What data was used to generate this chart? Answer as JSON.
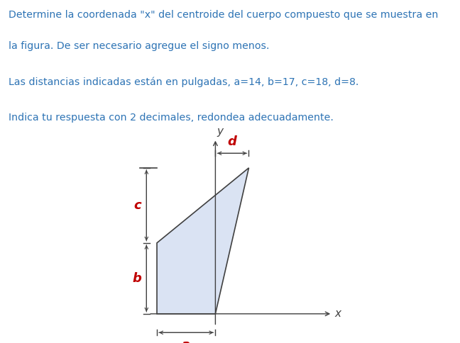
{
  "title_line1": "Determine la coordenada \"x\" del centroide del cuerpo compuesto que se muestra en",
  "title_line2": "la figura. De ser necesario agregue el signo menos.",
  "line2": "Las distancias indicadas están en pulgadas, a=14, b=17, c=18, d=8.",
  "line3": "Indica tu respuesta con 2 decimales, redondea adecuadamente.",
  "a": 14,
  "b": 17,
  "c": 18,
  "d": 8,
  "text_color": "#2E74B5",
  "label_color": "#C00000",
  "shape_fill": "#DAE3F3",
  "shape_edge": "#404040",
  "bg_color": "#FFFFFF",
  "fig_width": 6.48,
  "fig_height": 4.84,
  "dpi": 100
}
